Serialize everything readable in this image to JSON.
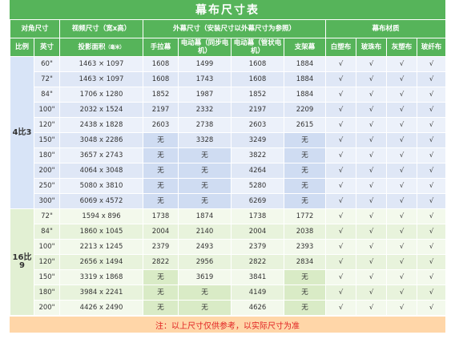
{
  "title": "幕布尺寸表",
  "headers": {
    "diagonal": "对角尺寸",
    "video_size": "视频尺寸（宽x高）",
    "outer_size": "外幕尺寸（安装尺寸以外幕尺寸为参照）",
    "material": "幕布材质",
    "ratio": "比例",
    "inch": "英寸",
    "proj_area": "投影面积",
    "unit": "（毫米）",
    "manual": "手拉幕",
    "elec_sync": "电动幕（同步电机）",
    "elec_tube": "电动幕（管状电机）",
    "stand": "支架幕",
    "white": "白塑布",
    "bead": "玻珠布",
    "grey": "灰塑布",
    "fiber": "玻纤布"
  },
  "groups": [
    {
      "ratio": "4比3",
      "rows": [
        [
          "60\"",
          "1463 × 1097",
          "1608",
          "1499",
          "1608",
          "1884"
        ],
        [
          "72\"",
          "1463 × 1097",
          "1608",
          "1743",
          "1608",
          "1884"
        ],
        [
          "84\"",
          "1706 x 1280",
          "1852",
          "1987",
          "1852",
          "1884"
        ],
        [
          "100\"",
          "2032 x 1524",
          "2197",
          "2332",
          "2197",
          "2209"
        ],
        [
          "120\"",
          "2438 x 1828",
          "2603",
          "2738",
          "2603",
          "2615"
        ],
        [
          "150\"",
          "3048 x 2286",
          "无",
          "3328",
          "3249",
          "无"
        ],
        [
          "180\"",
          "3657 x 2743",
          "无",
          "无",
          "3822",
          "无"
        ],
        [
          "200\"",
          "4064 x 3048",
          "无",
          "无",
          "4264",
          "无"
        ],
        [
          "250\"",
          "5080 x 3810",
          "无",
          "无",
          "5280",
          "无"
        ],
        [
          "300\"",
          "6069 x 4572",
          "无",
          "无",
          "6269",
          "无"
        ]
      ]
    },
    {
      "ratio": "16比9",
      "rows": [
        [
          "72\"",
          "1594 x 896",
          "1738",
          "1874",
          "1738",
          "1772"
        ],
        [
          "84\"",
          "1860 x 1045",
          "2004",
          "2140",
          "2004",
          "2038"
        ],
        [
          "100\"",
          "2213 x 1245",
          "2379",
          "2493",
          "2379",
          "2393"
        ],
        [
          "120\"",
          "2656 x 1494",
          "2822",
          "2956",
          "2822",
          "2834"
        ],
        [
          "150\"",
          "3319 x 1868",
          "无",
          "3619",
          "3841",
          "无"
        ],
        [
          "180\"",
          "3984 x 2241",
          "无",
          "无",
          "4149",
          "无"
        ],
        [
          "200\"",
          "4426 x 2490",
          "无",
          "无",
          "4626",
          "无"
        ]
      ]
    }
  ],
  "check": "√",
  "note": "注：以上尺寸仅供参考，以实际尺寸为准",
  "colors": {
    "header_green": "#56b45a",
    "note_text": "#e02020"
  }
}
